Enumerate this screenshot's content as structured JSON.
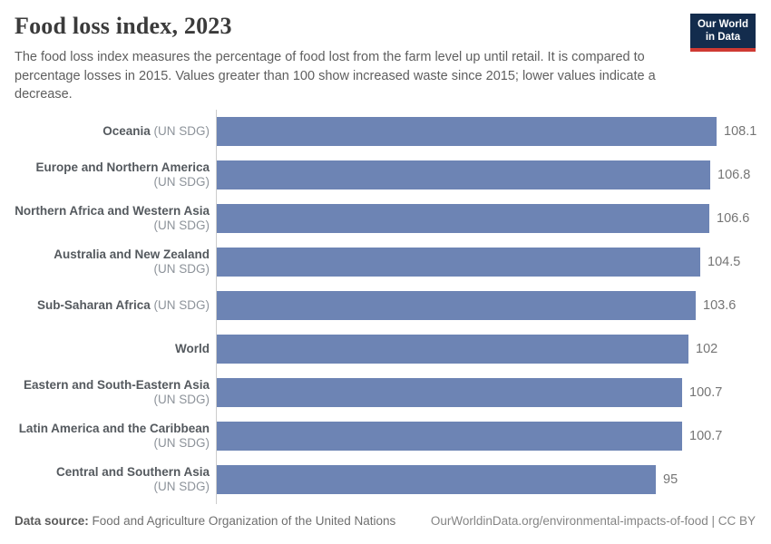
{
  "header": {
    "title": "Food loss index, 2023",
    "subtitle": "The food loss index measures the percentage of food lost from the farm level up until retail. It is compared to percentage losses in 2015. Values greater than 100 show increased waste since 2015; lower values indicate a decrease.",
    "logo": {
      "line1": "Our World",
      "line2": "in Data"
    }
  },
  "chart_data": {
    "type": "bar",
    "orientation": "horizontal",
    "title": "Food loss index, 2023",
    "xlim": [
      0,
      108.1
    ],
    "grid": false,
    "value_labels_shown": true,
    "categories": [
      "Oceania (UN SDG)",
      "Europe and Northern America (UN SDG)",
      "Northern Africa and Western Asia (UN SDG)",
      "Australia and New Zealand (UN SDG)",
      "Sub-Saharan Africa (UN SDG)",
      "World",
      "Eastern and South-Eastern Asia (UN SDG)",
      "Latin America and the Caribbean (UN SDG)",
      "Central and Southern Asia (UN SDG)"
    ],
    "values": [
      108.1,
      106.8,
      106.6,
      104.5,
      103.6,
      102,
      100.7,
      100.7,
      95
    ],
    "rows": [
      {
        "name": "Oceania",
        "suffix": "(UN SDG)",
        "suffix_new_line": false,
        "value": 108.1,
        "value_label": "108.1"
      },
      {
        "name": "Europe and Northern America",
        "suffix": "(UN SDG)",
        "suffix_new_line": true,
        "value": 106.8,
        "value_label": "106.8"
      },
      {
        "name": "Northern Africa and Western Asia",
        "suffix": "(UN SDG)",
        "suffix_new_line": true,
        "value": 106.6,
        "value_label": "106.6"
      },
      {
        "name": "Australia and New Zealand",
        "suffix": "(UN SDG)",
        "suffix_new_line": false,
        "value": 104.5,
        "value_label": "104.5"
      },
      {
        "name": "Sub-Saharan Africa",
        "suffix": "(UN SDG)",
        "suffix_new_line": false,
        "value": 103.6,
        "value_label": "103.6"
      },
      {
        "name": "World",
        "suffix": "",
        "suffix_new_line": false,
        "value": 102,
        "value_label": "102"
      },
      {
        "name": "Eastern and South-Eastern Asia",
        "suffix": "(UN SDG)",
        "suffix_new_line": true,
        "value": 100.7,
        "value_label": "100.7"
      },
      {
        "name": "Latin America and the Caribbean",
        "suffix": "(UN SDG)",
        "suffix_new_line": true,
        "value": 100.7,
        "value_label": "100.7"
      },
      {
        "name": "Central and Southern Asia",
        "suffix": "(UN SDG)",
        "suffix_new_line": false,
        "value": 95,
        "value_label": "95"
      }
    ]
  },
  "footer": {
    "source_label": "Data source:",
    "source_text": "Food and Agriculture Organization of the United Nations",
    "citation": "OurWorldinData.org/environmental-impacts-of-food | CC BY"
  },
  "colors": {
    "bar": "#6d84b4",
    "axis_line": "#cccccc",
    "logo_bg": "#132c4d",
    "logo_accent": "#cf3a33",
    "title_text": "#3b3b3b",
    "subtitle_text": "#5e5e5e"
  }
}
